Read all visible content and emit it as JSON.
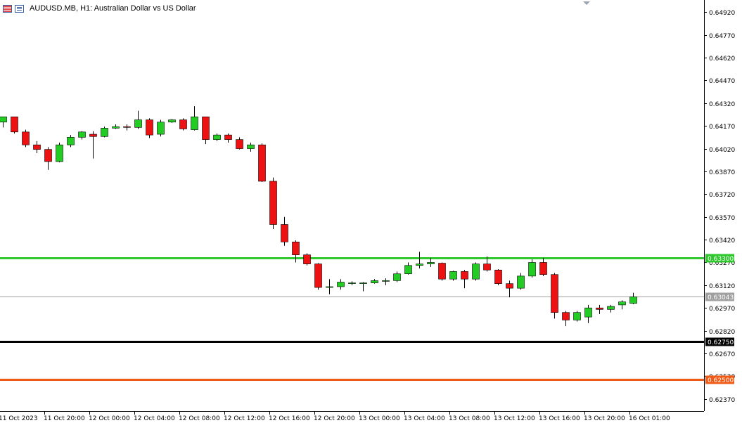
{
  "header": {
    "symbol": "AUDUSD.MB, H1:",
    "description": "Australian Dollar vs US Dollar"
  },
  "chart_data": {
    "type": "candlestick",
    "ylim": [
      0.6229,
      0.65
    ],
    "y_ticks": [
      "0.64920",
      "0.64770",
      "0.64620",
      "0.64470",
      "0.64320",
      "0.64170",
      "0.64020",
      "0.63870",
      "0.63720",
      "0.63570",
      "0.63420",
      "0.63270",
      "0.63120",
      "0.62970",
      "0.62820",
      "0.62670",
      "0.62520",
      "0.62370"
    ],
    "x_ticks": [
      {
        "index": 0,
        "label": "11 Oct 2023"
      },
      {
        "index": 4,
        "label": "11 Oct 20:00"
      },
      {
        "index": 8,
        "label": "12 Oct 00:00"
      },
      {
        "index": 12,
        "label": "12 Oct 04:00"
      },
      {
        "index": 16,
        "label": "12 Oct 08:00"
      },
      {
        "index": 20,
        "label": "12 Oct 12:00"
      },
      {
        "index": 24,
        "label": "12 Oct 16:00"
      },
      {
        "index": 28,
        "label": "12 Oct 20:00"
      },
      {
        "index": 32,
        "label": "13 Oct 00:00"
      },
      {
        "index": 36,
        "label": "13 Oct 04:00"
      },
      {
        "index": 40,
        "label": "13 Oct 08:00"
      },
      {
        "index": 44,
        "label": "13 Oct 12:00"
      },
      {
        "index": 48,
        "label": "13 Oct 16:00"
      },
      {
        "index": 52,
        "label": "13 Oct 20:00"
      },
      {
        "index": 56,
        "label": "16 Oct 01:00"
      }
    ],
    "candles": [
      {
        "o": 0.64195,
        "h": 0.64215,
        "l": 0.6416,
        "c": 0.6423
      },
      {
        "o": 0.6423,
        "h": 0.6423,
        "l": 0.6412,
        "c": 0.6413
      },
      {
        "o": 0.6413,
        "h": 0.64145,
        "l": 0.6403,
        "c": 0.64045
      },
      {
        "o": 0.64045,
        "h": 0.6407,
        "l": 0.6399,
        "c": 0.64015
      },
      {
        "o": 0.64015,
        "h": 0.6403,
        "l": 0.6388,
        "c": 0.63935
      },
      {
        "o": 0.63935,
        "h": 0.6406,
        "l": 0.6393,
        "c": 0.64045
      },
      {
        "o": 0.64045,
        "h": 0.6411,
        "l": 0.6403,
        "c": 0.64095
      },
      {
        "o": 0.64095,
        "h": 0.64135,
        "l": 0.6408,
        "c": 0.6413
      },
      {
        "o": 0.64115,
        "h": 0.64135,
        "l": 0.63955,
        "c": 0.641
      },
      {
        "o": 0.641,
        "h": 0.64165,
        "l": 0.64095,
        "c": 0.64155
      },
      {
        "o": 0.64155,
        "h": 0.6418,
        "l": 0.6415,
        "c": 0.64165
      },
      {
        "o": 0.64165,
        "h": 0.6418,
        "l": 0.6414,
        "c": 0.6416
      },
      {
        "o": 0.6416,
        "h": 0.6427,
        "l": 0.6415,
        "c": 0.6421
      },
      {
        "o": 0.6421,
        "h": 0.6422,
        "l": 0.6409,
        "c": 0.6411
      },
      {
        "o": 0.64115,
        "h": 0.6421,
        "l": 0.641,
        "c": 0.64195
      },
      {
        "o": 0.64195,
        "h": 0.64215,
        "l": 0.6419,
        "c": 0.6421
      },
      {
        "o": 0.6421,
        "h": 0.6422,
        "l": 0.6414,
        "c": 0.6415
      },
      {
        "o": 0.64145,
        "h": 0.643,
        "l": 0.6414,
        "c": 0.6423
      },
      {
        "o": 0.6423,
        "h": 0.6423,
        "l": 0.6405,
        "c": 0.6408
      },
      {
        "o": 0.6408,
        "h": 0.6412,
        "l": 0.6407,
        "c": 0.6411
      },
      {
        "o": 0.6411,
        "h": 0.6412,
        "l": 0.6406,
        "c": 0.6408
      },
      {
        "o": 0.6408,
        "h": 0.64095,
        "l": 0.64015,
        "c": 0.6402
      },
      {
        "o": 0.6402,
        "h": 0.6406,
        "l": 0.64,
        "c": 0.64045
      },
      {
        "o": 0.64045,
        "h": 0.64055,
        "l": 0.638,
        "c": 0.63805
      },
      {
        "o": 0.63805,
        "h": 0.6383,
        "l": 0.6349,
        "c": 0.6352
      },
      {
        "o": 0.6352,
        "h": 0.6357,
        "l": 0.6338,
        "c": 0.63405
      },
      {
        "o": 0.63405,
        "h": 0.63415,
        "l": 0.6327,
        "c": 0.6332
      },
      {
        "o": 0.6332,
        "h": 0.6333,
        "l": 0.6325,
        "c": 0.6326
      },
      {
        "o": 0.6326,
        "h": 0.63265,
        "l": 0.6309,
        "c": 0.63105
      },
      {
        "o": 0.63105,
        "h": 0.6316,
        "l": 0.6306,
        "c": 0.6311
      },
      {
        "o": 0.6311,
        "h": 0.6316,
        "l": 0.6309,
        "c": 0.6314
      },
      {
        "o": 0.6313,
        "h": 0.63145,
        "l": 0.6312,
        "c": 0.63135
      },
      {
        "o": 0.6313,
        "h": 0.6314,
        "l": 0.6308,
        "c": 0.63135
      },
      {
        "o": 0.63135,
        "h": 0.6316,
        "l": 0.6313,
        "c": 0.6315
      },
      {
        "o": 0.63145,
        "h": 0.63165,
        "l": 0.6312,
        "c": 0.6315
      },
      {
        "o": 0.6315,
        "h": 0.6321,
        "l": 0.6314,
        "c": 0.63195
      },
      {
        "o": 0.63195,
        "h": 0.6327,
        "l": 0.6319,
        "c": 0.6325
      },
      {
        "o": 0.6325,
        "h": 0.6334,
        "l": 0.6323,
        "c": 0.6326
      },
      {
        "o": 0.6326,
        "h": 0.633,
        "l": 0.6324,
        "c": 0.6327
      },
      {
        "o": 0.63265,
        "h": 0.6327,
        "l": 0.6315,
        "c": 0.6316
      },
      {
        "o": 0.6316,
        "h": 0.63215,
        "l": 0.6315,
        "c": 0.6321
      },
      {
        "o": 0.6321,
        "h": 0.6322,
        "l": 0.631,
        "c": 0.6316
      },
      {
        "o": 0.6316,
        "h": 0.6327,
        "l": 0.6315,
        "c": 0.6326
      },
      {
        "o": 0.6326,
        "h": 0.6331,
        "l": 0.6321,
        "c": 0.6322
      },
      {
        "o": 0.6322,
        "h": 0.63225,
        "l": 0.6312,
        "c": 0.6313
      },
      {
        "o": 0.6313,
        "h": 0.6315,
        "l": 0.6304,
        "c": 0.631
      },
      {
        "o": 0.631,
        "h": 0.632,
        "l": 0.6309,
        "c": 0.6318
      },
      {
        "o": 0.6318,
        "h": 0.6329,
        "l": 0.6317,
        "c": 0.6327
      },
      {
        "o": 0.6327,
        "h": 0.633,
        "l": 0.6318,
        "c": 0.6319
      },
      {
        "o": 0.6319,
        "h": 0.632,
        "l": 0.629,
        "c": 0.6294
      },
      {
        "o": 0.6294,
        "h": 0.6295,
        "l": 0.6285,
        "c": 0.6289
      },
      {
        "o": 0.6289,
        "h": 0.6295,
        "l": 0.6288,
        "c": 0.6294
      },
      {
        "o": 0.6291,
        "h": 0.6299,
        "l": 0.6287,
        "c": 0.6297
      },
      {
        "o": 0.6297,
        "h": 0.6299,
        "l": 0.6293,
        "c": 0.6296
      },
      {
        "o": 0.6296,
        "h": 0.6299,
        "l": 0.6294,
        "c": 0.6298
      },
      {
        "o": 0.6299,
        "h": 0.6302,
        "l": 0.6296,
        "c": 0.6301
      },
      {
        "o": 0.63,
        "h": 0.6307,
        "l": 0.62995,
        "c": 0.63043
      }
    ],
    "hlines": [
      {
        "name": "upper-level",
        "value": 0.633,
        "label": "0.63300",
        "color": "#2ec82e"
      },
      {
        "name": "bid",
        "value": 0.63043,
        "label": "0.63043",
        "color": "#a0a0a0"
      },
      {
        "name": "middle-level",
        "value": 0.6275,
        "label": "0.62750",
        "color": "#000000"
      },
      {
        "name": "lower-level",
        "value": 0.625,
        "label": "0.62500",
        "color": "#f05a14"
      }
    ],
    "colors": {
      "bull": "#22cc22",
      "bear": "#ee1111",
      "outline": "#000000"
    }
  }
}
